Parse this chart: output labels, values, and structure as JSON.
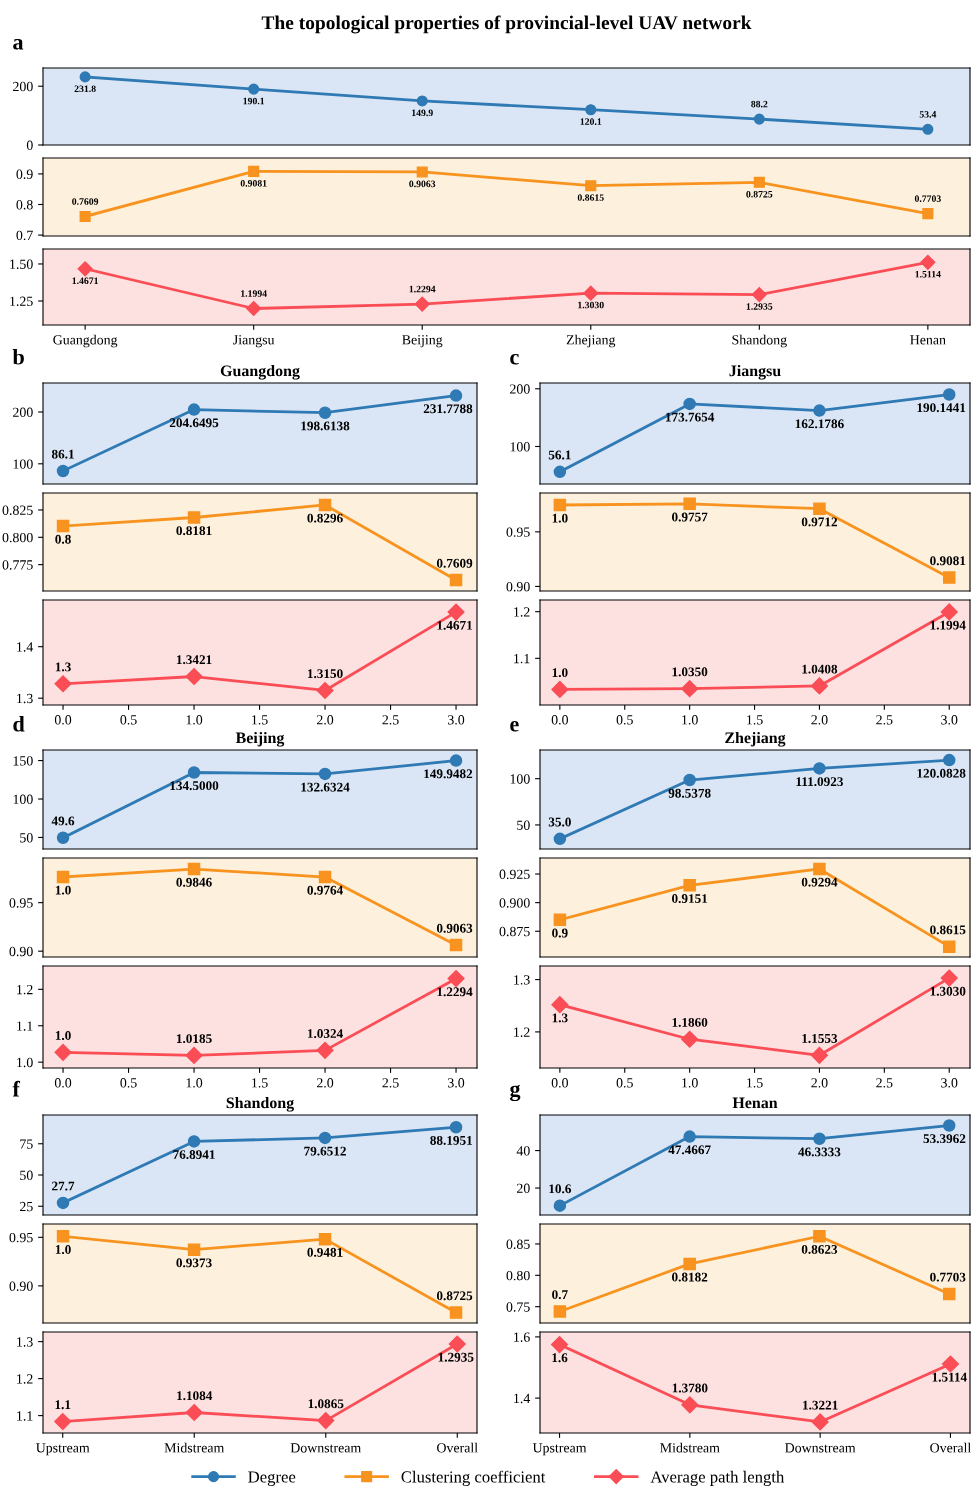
{
  "chart_data": [
    {
      "type": "line",
      "title": "The topological properties of provincial-level UAV network",
      "annotations": [
        "a"
      ],
      "categories": [
        null,
        null,
        null,
        null,
        null,
        null
      ],
      "tick_labels": "y",
      "ylim": [
        0,
        262
      ],
      "yticks": [
        0,
        200
      ],
      "marker": "circle",
      "legend": "bottom",
      "series": [
        {
          "name": "Degree",
          "color": "#2f7ab4",
          "values": [
            231.8,
            190.1,
            149.9,
            120.1,
            88.2,
            53.4
          ],
          "value_labels": [
            "231.8",
            "190.1",
            "149.9",
            "120.1",
            "88.2",
            "53.4"
          ]
        }
      ]
    },
    {
      "type": "line",
      "categories": [
        null,
        null,
        null,
        null,
        null,
        null
      ],
      "tick_labels": "y",
      "ylim": [
        0.697,
        0.952
      ],
      "yticks": [
        0.7,
        0.8,
        0.9
      ],
      "marker": "square",
      "legend": "bottom",
      "series": [
        {
          "name": "Clustering coefficient",
          "color": "#f7931e",
          "values": [
            0.7609,
            0.9081,
            0.9063,
            0.8615,
            0.8725,
            0.7703
          ],
          "value_labels": [
            "0.7609",
            "0.9081",
            "0.9063",
            "0.8615",
            "0.8725",
            "0.7703"
          ]
        }
      ]
    },
    {
      "type": "line",
      "categories": [
        "Guangdong",
        "Jiangsu",
        "Beijing",
        "Zhejiang",
        "Shandong",
        "Henan"
      ],
      "ylim": [
        1.088,
        1.601
      ],
      "yticks": [
        1.25,
        {
          "value": 1.5,
          "label": "1.50"
        }
      ],
      "marker": "diamond",
      "legend": "bottom",
      "series": [
        {
          "name": "Average path length",
          "color": "#fa4d56",
          "values": [
            1.4671,
            1.1994,
            1.2294,
            1.303,
            1.2935,
            1.5114
          ],
          "value_labels": [
            "1.4671",
            "1.1994",
            "1.2294",
            "1.3030",
            "1.2935",
            "1.5114"
          ]
        }
      ]
    },
    {
      "type": "line",
      "title": "Guangdong",
      "annotations": [
        "b"
      ],
      "x": [
        0,
        1,
        2,
        3
      ],
      "xlim": [
        -0.153,
        3.16
      ],
      "tick_labels": "y",
      "ylim": [
        61,
        256
      ],
      "yticks": [
        100,
        200
      ],
      "marker": "circle",
      "series": [
        {
          "name": "Degree",
          "color": "#2f7ab4",
          "values": [
            86.1,
            204.6495,
            198.6138,
            231.7788
          ],
          "value_labels": [
            "86.1",
            "204.6495",
            "198.6138",
            "231.7788"
          ]
        }
      ]
    },
    {
      "type": "line",
      "x": [
        0,
        1,
        2,
        3
      ],
      "xlim": [
        -0.153,
        3.16
      ],
      "tick_labels": "y",
      "ylim": [
        0.7509,
        0.8405
      ],
      "yticks": [
        0.775,
        {
          "value": 0.8,
          "label": "0.800"
        },
        0.825
      ],
      "marker": "square",
      "series": [
        {
          "name": "Clustering coefficient",
          "color": "#f7931e",
          "values": [
            0.8103,
            0.8181,
            0.8296,
            0.7609
          ],
          "value_labels": [
            "0.8",
            "0.8181",
            "0.8296",
            "0.7609"
          ]
        }
      ]
    },
    {
      "type": "line",
      "x": [
        0,
        1,
        2,
        3
      ],
      "xlim": [
        -0.153,
        3.16
      ],
      "xticks": [
        {
          "value": 0,
          "label": "0.0"
        },
        0.5,
        {
          "value": 1,
          "label": "1.0"
        },
        1.5,
        {
          "value": 2,
          "label": "2.0"
        },
        2.5,
        {
          "value": 3,
          "label": "3.0"
        }
      ],
      "ylim": [
        1.2868,
        1.4906
      ],
      "yticks": [
        1.3,
        1.4
      ],
      "marker": "diamond",
      "series": [
        {
          "name": "Average path length",
          "color": "#fa4d56",
          "values": [
            1.328,
            1.3421,
            1.315,
            1.4671
          ],
          "value_labels": [
            "1.3",
            "1.3421",
            "1.3150",
            "1.4671"
          ]
        }
      ]
    },
    {
      "type": "line",
      "title": "Jiangsu",
      "annotations": [
        "c"
      ],
      "x": [
        0,
        1,
        2,
        3
      ],
      "xlim": [
        -0.153,
        3.16
      ],
      "tick_labels": "y",
      "ylim": [
        35,
        210
      ],
      "yticks": [
        100,
        200
      ],
      "marker": "circle",
      "series": [
        {
          "name": "Degree",
          "color": "#2f7ab4",
          "values": [
            56.1,
            173.7654,
            162.1786,
            190.1441
          ],
          "value_labels": [
            "56.1",
            "173.7654",
            "162.1786",
            "190.1441"
          ]
        }
      ]
    },
    {
      "type": "line",
      "x": [
        0,
        1,
        2,
        3
      ],
      "xlim": [
        -0.153,
        3.16
      ],
      "tick_labels": "y",
      "ylim": [
        0.8958,
        0.9856
      ],
      "yticks": [
        {
          "value": 0.9,
          "label": "0.90"
        },
        0.95
      ],
      "marker": "square",
      "series": [
        {
          "name": "Clustering coefficient",
          "color": "#f7931e",
          "values": [
            0.9746,
            0.9757,
            0.9712,
            0.9081
          ],
          "value_labels": [
            "1.0",
            "0.9757",
            "0.9712",
            "0.9081"
          ]
        }
      ]
    },
    {
      "type": "line",
      "x": [
        0,
        1,
        2,
        3
      ],
      "xlim": [
        -0.153,
        3.16
      ],
      "xticks": [
        {
          "value": 0,
          "label": "0.0"
        },
        0.5,
        {
          "value": 1,
          "label": "1.0"
        },
        1.5,
        {
          "value": 2,
          "label": "2.0"
        },
        2.5,
        {
          "value": 3,
          "label": "3.0"
        }
      ],
      "ylim": [
        1.0,
        1.225
      ],
      "yticks": [
        1.1,
        1.2
      ],
      "marker": "diamond",
      "series": [
        {
          "name": "Average path length",
          "color": "#fa4d56",
          "values": [
            1.0333,
            1.035,
            1.0408,
            1.1994
          ],
          "value_labels": [
            "1.0",
            "1.0350",
            "1.0408",
            "1.1994"
          ]
        }
      ]
    },
    {
      "type": "line",
      "title": "Beijing",
      "annotations": [
        "d"
      ],
      "x": [
        0,
        1,
        2,
        3
      ],
      "xlim": [
        -0.153,
        3.16
      ],
      "tick_labels": "y",
      "ylim": [
        35,
        163.75
      ],
      "yticks": [
        50,
        100,
        150
      ],
      "marker": "circle",
      "series": [
        {
          "name": "Degree",
          "color": "#2f7ab4",
          "values": [
            49.6,
            134.5,
            132.6324,
            149.9482
          ],
          "value_labels": [
            "49.6",
            "134.5000",
            "132.6324",
            "149.9482"
          ]
        }
      ]
    },
    {
      "type": "line",
      "x": [
        0,
        1,
        2,
        3
      ],
      "xlim": [
        -0.153,
        3.16
      ],
      "tick_labels": "y",
      "ylim": [
        0.894,
        0.996
      ],
      "yticks": [
        {
          "value": 0.9,
          "label": "0.90"
        },
        0.95
      ],
      "marker": "square",
      "series": [
        {
          "name": "Clustering coefficient",
          "color": "#f7931e",
          "values": [
            0.9765,
            0.9846,
            0.9764,
            0.9063
          ],
          "value_labels": [
            "1.0",
            "0.9846",
            "0.9764",
            "0.9063"
          ]
        }
      ]
    },
    {
      "type": "line",
      "x": [
        0,
        1,
        2,
        3
      ],
      "xlim": [
        -0.153,
        3.16
      ],
      "xticks": [
        {
          "value": 0,
          "label": "0.0"
        },
        0.5,
        {
          "value": 1,
          "label": "1.0"
        },
        1.5,
        {
          "value": 2,
          "label": "2.0"
        },
        2.5,
        {
          "value": 3,
          "label": "3.0"
        }
      ],
      "ylim": [
        0.984,
        1.264
      ],
      "yticks": [
        {
          "value": 1.0,
          "label": "1.0"
        },
        1.1,
        1.2
      ],
      "marker": "diamond",
      "series": [
        {
          "name": "Average path length",
          "color": "#fa4d56",
          "values": [
            1.027,
            1.0185,
            1.0324,
            1.2294
          ],
          "value_labels": [
            "1.0",
            "1.0185",
            "1.0324",
            "1.2294"
          ]
        }
      ]
    },
    {
      "type": "line",
      "title": "Zhejiang",
      "annotations": [
        "e"
      ],
      "x": [
        0,
        1,
        2,
        3
      ],
      "xlim": [
        -0.153,
        3.16
      ],
      "tick_labels": "y",
      "ylim": [
        24,
        131
      ],
      "yticks": [
        50,
        100
      ],
      "marker": "circle",
      "series": [
        {
          "name": "Degree",
          "color": "#2f7ab4",
          "values": [
            35.0,
            98.5378,
            111.0923,
            120.0828
          ],
          "value_labels": [
            "35.0",
            "98.5378",
            "111.0923",
            "120.0828"
          ]
        }
      ]
    },
    {
      "type": "line",
      "x": [
        0,
        1,
        2,
        3
      ],
      "xlim": [
        -0.153,
        3.16
      ],
      "tick_labels": "y",
      "ylim": [
        0.8525,
        0.939
      ],
      "yticks": [
        0.875,
        {
          "value": 0.9,
          "label": "0.900"
        },
        0.925
      ],
      "marker": "square",
      "series": [
        {
          "name": "Clustering coefficient",
          "color": "#f7931e",
          "values": [
            0.885,
            0.9151,
            0.9294,
            0.8615
          ],
          "value_labels": [
            "0.9",
            "0.9151",
            "0.9294",
            "0.8615"
          ]
        }
      ]
    },
    {
      "type": "line",
      "x": [
        0,
        1,
        2,
        3
      ],
      "xlim": [
        -0.153,
        3.16
      ],
      "xticks": [
        {
          "value": 0,
          "label": "0.0"
        },
        0.5,
        {
          "value": 1,
          "label": "1.0"
        },
        1.5,
        {
          "value": 2,
          "label": "2.0"
        },
        2.5,
        {
          "value": 3,
          "label": "3.0"
        }
      ],
      "ylim": [
        1.131,
        1.326
      ],
      "yticks": [
        1.2,
        1.3
      ],
      "marker": "diamond",
      "series": [
        {
          "name": "Average path length",
          "color": "#fa4d56",
          "values": [
            1.252,
            1.186,
            1.1553,
            1.303
          ],
          "value_labels": [
            "1.3",
            "1.1860",
            "1.1553",
            "1.3030"
          ]
        }
      ]
    },
    {
      "type": "line",
      "title": "Shandong",
      "annotations": [
        "f"
      ],
      "x": [
        0,
        1,
        2,
        3
      ],
      "xlim": [
        -0.153,
        3.16
      ],
      "tick_labels": "y",
      "ylim": [
        18,
        98
      ],
      "yticks": [
        25,
        50,
        75
      ],
      "marker": "circle",
      "series": [
        {
          "name": "Degree",
          "color": "#2f7ab4",
          "values": [
            27.7,
            76.8941,
            79.6512,
            88.1951
          ],
          "value_labels": [
            "27.7",
            "76.8941",
            "79.6512",
            "88.1951"
          ]
        }
      ]
    },
    {
      "type": "line",
      "x": [
        0,
        1,
        2,
        3
      ],
      "xlim": [
        -0.153,
        3.16
      ],
      "tick_labels": "y",
      "ylim": [
        0.8618,
        0.9637
      ],
      "yticks": [
        {
          "value": 0.9,
          "label": "0.90"
        },
        0.95
      ],
      "marker": "square",
      "series": [
        {
          "name": "Clustering coefficient",
          "color": "#f7931e",
          "values": [
            0.951,
            0.9373,
            0.9481,
            0.8725
          ],
          "value_labels": [
            "1.0",
            "0.9373",
            "0.9481",
            "0.8725"
          ]
        }
      ]
    },
    {
      "type": "line",
      "categories": [
        "Upstream",
        "Midstream",
        "Downstream",
        "Overall"
      ],
      "ylim": [
        1.053,
        1.326
      ],
      "yticks": [
        1.1,
        1.2,
        1.3
      ],
      "marker": "diamond",
      "series": [
        {
          "name": "Average path length",
          "color": "#fa4d56",
          "values": [
            1.084,
            1.1084,
            1.0865,
            1.2935
          ],
          "value_labels": [
            "1.1",
            "1.1084",
            "1.0865",
            "1.2935"
          ]
        }
      ]
    },
    {
      "type": "line",
      "title": "Henan",
      "annotations": [
        "g"
      ],
      "x": [
        0,
        1,
        2,
        3
      ],
      "xlim": [
        -0.153,
        3.16
      ],
      "tick_labels": "y",
      "ylim": [
        5.6,
        59
      ],
      "yticks": [
        20,
        40
      ],
      "marker": "circle",
      "series": [
        {
          "name": "Degree",
          "color": "#2f7ab4",
          "values": [
            10.6,
            47.4667,
            46.3333,
            53.3962
          ],
          "value_labels": [
            "10.6",
            "47.4667",
            "46.3333",
            "53.3962"
          ]
        }
      ]
    },
    {
      "type": "line",
      "x": [
        0,
        1,
        2,
        3
      ],
      "xlim": [
        -0.153,
        3.16
      ],
      "tick_labels": "y",
      "ylim": [
        0.724,
        0.8818
      ],
      "yticks": [
        0.75,
        {
          "value": 0.8,
          "label": "0.80"
        },
        0.85
      ],
      "marker": "square",
      "series": [
        {
          "name": "Clustering coefficient",
          "color": "#f7931e",
          "values": [
            0.7424,
            0.8182,
            0.8623,
            0.7703
          ],
          "value_labels": [
            "0.7",
            "0.8182",
            "0.8623",
            "0.7703"
          ]
        }
      ]
    },
    {
      "type": "line",
      "categories": [
        "Upstream",
        "Midstream",
        "Downstream",
        "Overall"
      ],
      "ylim": [
        1.286,
        1.616
      ],
      "yticks": [
        1.4,
        1.6
      ],
      "marker": "diamond",
      "series": [
        {
          "name": "Average path length",
          "color": "#fa4d56",
          "values": [
            1.575,
            1.378,
            1.3221,
            1.5114
          ],
          "value_labels": [
            "1.6",
            "1.3780",
            "1.3221",
            "1.5114"
          ]
        }
      ]
    }
  ]
}
